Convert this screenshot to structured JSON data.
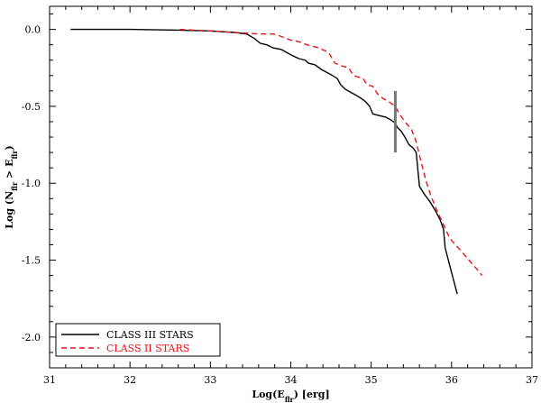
{
  "chart_data": {
    "type": "line",
    "xlabel": "Log(E_flr) [erg]",
    "ylabel": "Log (N_flr > E_flr)",
    "xlim": [
      31,
      37
    ],
    "ylim": [
      -2.2,
      0.15
    ],
    "x_ticks": [
      "31",
      "32",
      "33",
      "34",
      "35",
      "36",
      "37"
    ],
    "y_ticks": [
      "0.0",
      "-0.5",
      "-1.0",
      "-1.5",
      "-2.0"
    ],
    "legend": "bottom-left",
    "series": [
      {
        "name": "CLASS III STARS",
        "color": "#000000",
        "style": "solid",
        "points": [
          [
            31.26,
            0.0
          ],
          [
            32.0,
            0.0
          ],
          [
            32.6,
            -0.005
          ],
          [
            33.0,
            -0.01
          ],
          [
            33.3,
            -0.02
          ],
          [
            33.45,
            -0.03
          ],
          [
            33.55,
            -0.06
          ],
          [
            33.62,
            -0.09
          ],
          [
            33.7,
            -0.1
          ],
          [
            33.78,
            -0.12
          ],
          [
            33.88,
            -0.13
          ],
          [
            33.95,
            -0.15
          ],
          [
            34.02,
            -0.17
          ],
          [
            34.1,
            -0.19
          ],
          [
            34.18,
            -0.2
          ],
          [
            34.22,
            -0.22
          ],
          [
            34.3,
            -0.23
          ],
          [
            34.38,
            -0.26
          ],
          [
            34.45,
            -0.28
          ],
          [
            34.52,
            -0.3
          ],
          [
            34.58,
            -0.32
          ],
          [
            34.62,
            -0.36
          ],
          [
            34.68,
            -0.39
          ],
          [
            34.75,
            -0.41
          ],
          [
            34.82,
            -0.43
          ],
          [
            34.88,
            -0.45
          ],
          [
            34.93,
            -0.47
          ],
          [
            34.98,
            -0.5
          ],
          [
            35.02,
            -0.55
          ],
          [
            35.1,
            -0.56
          ],
          [
            35.18,
            -0.57
          ],
          [
            35.25,
            -0.59
          ],
          [
            35.3,
            -0.61
          ],
          [
            35.33,
            -0.64
          ],
          [
            35.37,
            -0.66
          ],
          [
            35.42,
            -0.7
          ],
          [
            35.47,
            -0.75
          ],
          [
            35.52,
            -0.77
          ],
          [
            35.56,
            -0.8
          ],
          [
            35.6,
            -1.02
          ],
          [
            35.66,
            -1.07
          ],
          [
            35.73,
            -1.12
          ],
          [
            35.8,
            -1.18
          ],
          [
            35.86,
            -1.24
          ],
          [
            35.9,
            -1.3
          ],
          [
            35.92,
            -1.42
          ],
          [
            36.0,
            -1.58
          ],
          [
            36.07,
            -1.72
          ]
        ]
      },
      {
        "name": "CLASS II STARS",
        "color": "#e8141a",
        "style": "dashed",
        "points": [
          [
            32.62,
            0.0
          ],
          [
            33.0,
            -0.01
          ],
          [
            33.3,
            -0.02
          ],
          [
            33.6,
            -0.03
          ],
          [
            33.78,
            -0.03
          ],
          [
            33.85,
            -0.04
          ],
          [
            34.0,
            -0.07
          ],
          [
            34.1,
            -0.08
          ],
          [
            34.2,
            -0.1
          ],
          [
            34.35,
            -0.12
          ],
          [
            34.47,
            -0.15
          ],
          [
            34.55,
            -0.22
          ],
          [
            34.65,
            -0.24
          ],
          [
            34.72,
            -0.25
          ],
          [
            34.78,
            -0.3
          ],
          [
            34.9,
            -0.32
          ],
          [
            34.95,
            -0.36
          ],
          [
            35.02,
            -0.37
          ],
          [
            35.08,
            -0.42
          ],
          [
            35.15,
            -0.45
          ],
          [
            35.22,
            -0.47
          ],
          [
            35.3,
            -0.5
          ],
          [
            35.35,
            -0.55
          ],
          [
            35.42,
            -0.6
          ],
          [
            35.5,
            -0.65
          ],
          [
            35.56,
            -0.73
          ],
          [
            35.62,
            -0.86
          ],
          [
            35.68,
            -0.98
          ],
          [
            35.74,
            -1.08
          ],
          [
            35.82,
            -1.18
          ],
          [
            35.9,
            -1.27
          ],
          [
            35.98,
            -1.36
          ],
          [
            36.1,
            -1.43
          ],
          [
            36.2,
            -1.49
          ],
          [
            36.3,
            -1.55
          ],
          [
            36.38,
            -1.6
          ]
        ]
      }
    ],
    "error_bar": {
      "x": 35.3,
      "y_low": -0.8,
      "y_high": -0.4,
      "color": "#777777"
    }
  }
}
